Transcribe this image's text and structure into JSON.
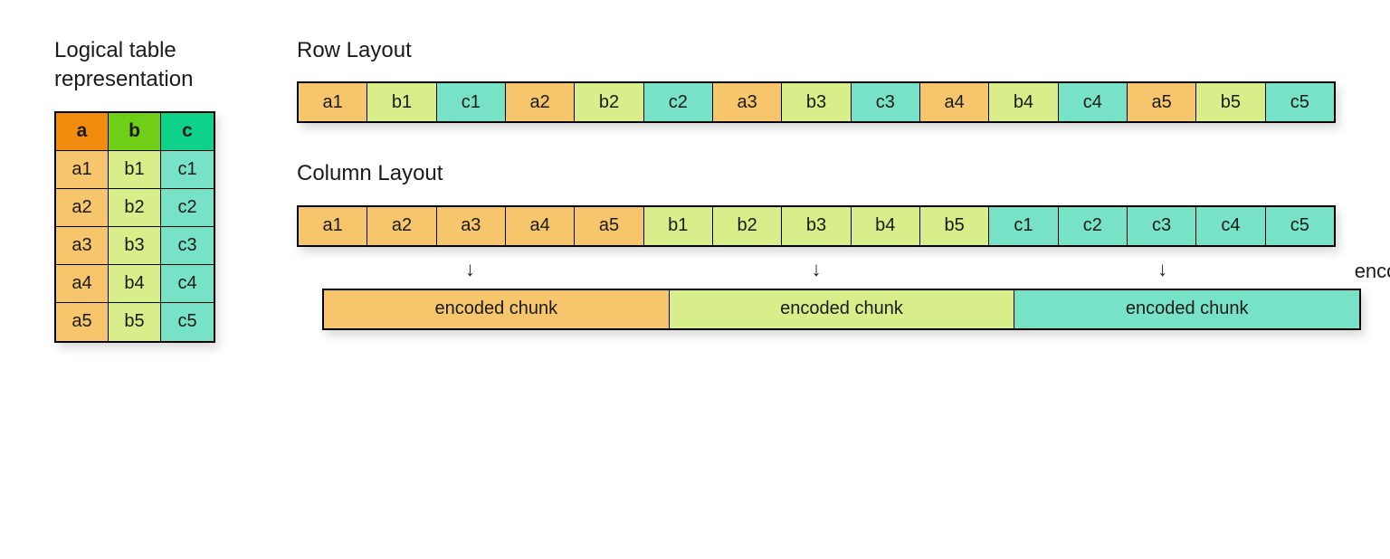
{
  "colors": {
    "a_header": "#f28c0f",
    "b_header": "#6fce16",
    "c_header": "#0fd28a",
    "a_cell": "#f7c56b",
    "b_cell": "#d7ee8b",
    "c_cell": "#78e2c7",
    "border": "#000000",
    "background": "#ffffff",
    "text": "#1a1a1a",
    "shadow": "rgba(0,0,0,0.15)"
  },
  "typography": {
    "title_fontsize": 24,
    "cell_fontsize": 20,
    "header_fontweight": 700,
    "font_family": "Segoe UI, Arial, sans-serif"
  },
  "logical": {
    "title": "Logical table\nrepresentation",
    "columns": [
      {
        "key": "a",
        "label": "a",
        "header_color": "#f28c0f",
        "cell_color": "#f7c56b"
      },
      {
        "key": "b",
        "label": "b",
        "header_color": "#6fce16",
        "cell_color": "#d7ee8b"
      },
      {
        "key": "c",
        "label": "c",
        "header_color": "#0fd28a",
        "cell_color": "#78e2c7"
      }
    ],
    "rows": [
      [
        "a1",
        "b1",
        "c1"
      ],
      [
        "a2",
        "b2",
        "c2"
      ],
      [
        "a3",
        "b3",
        "c3"
      ],
      [
        "a4",
        "b4",
        "c4"
      ],
      [
        "a5",
        "b5",
        "c5"
      ]
    ]
  },
  "row_layout": {
    "title": "Row Layout",
    "cells": [
      {
        "v": "a1",
        "c": "#f7c56b"
      },
      {
        "v": "b1",
        "c": "#d7ee8b"
      },
      {
        "v": "c1",
        "c": "#78e2c7"
      },
      {
        "v": "a2",
        "c": "#f7c56b"
      },
      {
        "v": "b2",
        "c": "#d7ee8b"
      },
      {
        "v": "c2",
        "c": "#78e2c7"
      },
      {
        "v": "a3",
        "c": "#f7c56b"
      },
      {
        "v": "b3",
        "c": "#d7ee8b"
      },
      {
        "v": "c3",
        "c": "#78e2c7"
      },
      {
        "v": "a4",
        "c": "#f7c56b"
      },
      {
        "v": "b4",
        "c": "#d7ee8b"
      },
      {
        "v": "c4",
        "c": "#78e2c7"
      },
      {
        "v": "a5",
        "c": "#f7c56b"
      },
      {
        "v": "b5",
        "c": "#d7ee8b"
      },
      {
        "v": "c5",
        "c": "#78e2c7"
      }
    ]
  },
  "column_layout": {
    "title": "Column Layout",
    "cells": [
      {
        "v": "a1",
        "c": "#f7c56b"
      },
      {
        "v": "a2",
        "c": "#f7c56b"
      },
      {
        "v": "a3",
        "c": "#f7c56b"
      },
      {
        "v": "a4",
        "c": "#f7c56b"
      },
      {
        "v": "a5",
        "c": "#f7c56b"
      },
      {
        "v": "b1",
        "c": "#d7ee8b"
      },
      {
        "v": "b2",
        "c": "#d7ee8b"
      },
      {
        "v": "b3",
        "c": "#d7ee8b"
      },
      {
        "v": "b4",
        "c": "#d7ee8b"
      },
      {
        "v": "b5",
        "c": "#d7ee8b"
      },
      {
        "v": "c1",
        "c": "#78e2c7"
      },
      {
        "v": "c2",
        "c": "#78e2c7"
      },
      {
        "v": "c3",
        "c": "#78e2c7"
      },
      {
        "v": "c4",
        "c": "#78e2c7"
      },
      {
        "v": "c5",
        "c": "#78e2c7"
      }
    ],
    "encoding_label": "encoding",
    "arrow_glyph": "↓",
    "chunks": [
      {
        "label": "encoded chunk",
        "color": "#f7c56b"
      },
      {
        "label": "encoded chunk",
        "color": "#d7ee8b"
      },
      {
        "label": "encoded chunk",
        "color": "#78e2c7"
      }
    ]
  }
}
